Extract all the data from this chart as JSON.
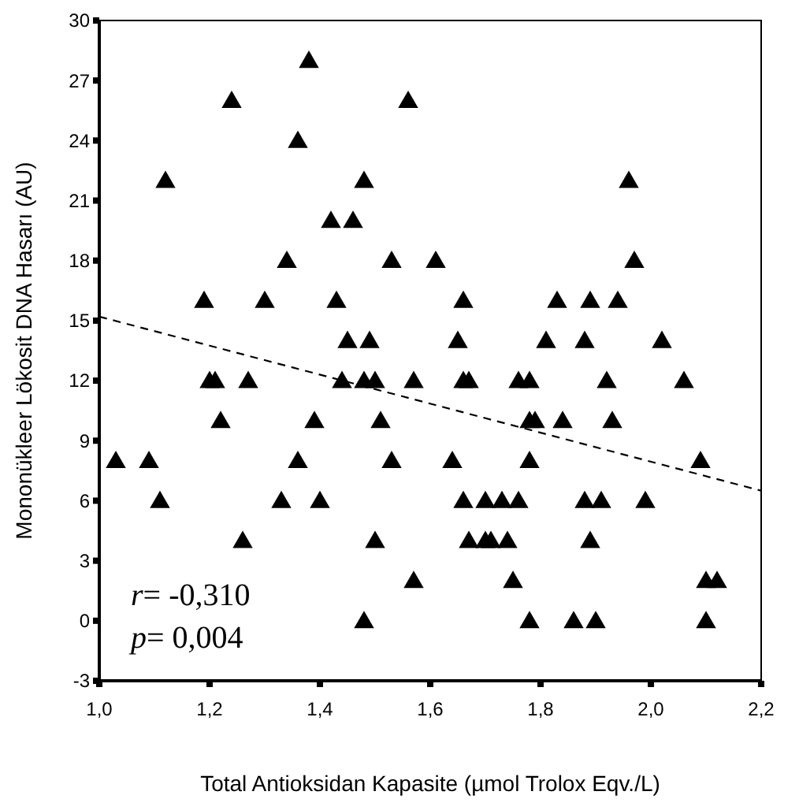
{
  "chart_data": {
    "type": "scatter",
    "xlabel": "Total Antioksidan Kapasite (µmol Trolox Eqv./L)",
    "ylabel": "Mononükleer Lökosit DNA Hasarı (AU)",
    "xlim": [
      1.0,
      2.2
    ],
    "ylim": [
      -3,
      30
    ],
    "xticks": [
      {
        "value": 1.0,
        "label": "1,0"
      },
      {
        "value": 1.2,
        "label": "1,2"
      },
      {
        "value": 1.4,
        "label": "1,4"
      },
      {
        "value": 1.6,
        "label": "1,6"
      },
      {
        "value": 1.8,
        "label": "1,8"
      },
      {
        "value": 2.0,
        "label": "2,0"
      },
      {
        "value": 2.2,
        "label": "2,2"
      }
    ],
    "yticks": [
      -3,
      0,
      3,
      6,
      9,
      12,
      15,
      18,
      21,
      24,
      27,
      30
    ],
    "grid": false,
    "marker": "triangle",
    "series": [
      {
        "color": "#000000",
        "x": [
          1.38,
          1.24,
          1.56,
          1.36,
          1.12,
          1.48,
          1.96,
          1.42,
          1.46,
          1.34,
          1.53,
          1.61,
          1.97,
          1.19,
          1.3,
          1.43,
          1.66,
          1.83,
          1.89,
          1.94,
          1.45,
          1.49,
          1.65,
          1.81,
          1.88,
          2.02,
          1.2,
          1.21,
          1.27,
          1.44,
          1.48,
          1.5,
          1.57,
          1.66,
          1.67,
          1.76,
          1.78,
          1.92,
          2.06,
          1.22,
          1.39,
          1.51,
          1.78,
          1.79,
          1.84,
          1.93,
          1.03,
          1.09,
          1.36,
          1.53,
          1.64,
          1.78,
          2.09,
          1.11,
          1.33,
          1.4,
          1.66,
          1.7,
          1.73,
          1.76,
          1.88,
          1.91,
          1.99,
          1.26,
          1.5,
          1.67,
          1.7,
          1.71,
          1.74,
          1.89,
          1.57,
          1.75,
          2.1,
          2.12,
          1.48,
          1.78,
          1.86,
          1.9,
          2.1
        ],
        "values": [
          28,
          26,
          26,
          24,
          22,
          22,
          22,
          20,
          20,
          18,
          18,
          18,
          18,
          16,
          16,
          16,
          16,
          16,
          16,
          16,
          14,
          14,
          14,
          14,
          14,
          14,
          12,
          12,
          12,
          12,
          12,
          12,
          12,
          12,
          12,
          12,
          12,
          12,
          12,
          10,
          10,
          10,
          10,
          10,
          10,
          10,
          8,
          8,
          8,
          8,
          8,
          8,
          8,
          6,
          6,
          6,
          6,
          6,
          6,
          6,
          6,
          6,
          6,
          4,
          4,
          4,
          4,
          4,
          4,
          4,
          2,
          2,
          2,
          2,
          0,
          0,
          0,
          0,
          0
        ]
      },
      {
        "type": "line",
        "color": "#000000",
        "line_style": "dashed",
        "marker": "none",
        "x": [
          1.0,
          2.2
        ],
        "values": [
          15.2,
          6.5
        ]
      }
    ],
    "annotations": [
      "r= -0,310",
      "p= 0,004"
    ]
  }
}
